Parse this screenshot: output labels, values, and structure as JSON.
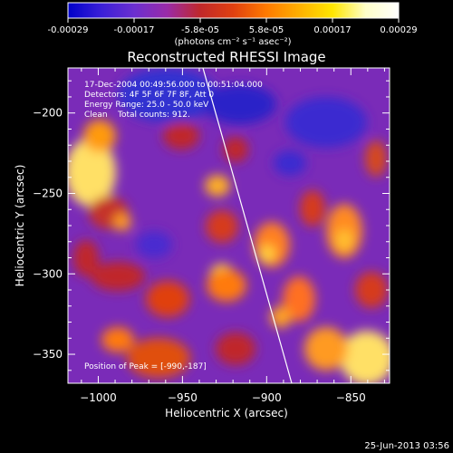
{
  "colorbar": {
    "tick_labels": [
      "-0.00029",
      "-0.00017",
      "-5.8e-05",
      "5.8e-05",
      "0.00017",
      "0.00029"
    ],
    "unit_label": "(photons cm⁻² s⁻¹ asec⁻²)",
    "colormap": [
      "#0000c8",
      "#3a1fd8",
      "#6b2fd0",
      "#9a2ba8",
      "#c0282a",
      "#e04010",
      "#ff7a00",
      "#ffb000",
      "#ffe600",
      "#ffffc8",
      "#ffffff"
    ]
  },
  "image": {
    "title": "Reconstructed RHESSI Image",
    "info_lines": [
      "17-Dec-2004 00:49:56.000 to 00:51:04.000",
      "Detectors: 4F 5F 6F 7F 8F, Att 0",
      "Energy Range: 25.0 - 50.0 keV",
      "Clean    Total counts: 912."
    ],
    "peak_label": "Position of Peak = [-990,-187]",
    "x_label": "Heliocentric X (arcsec)",
    "y_label": "Heliocentric Y (arcsec)",
    "x_ticks": [
      -1000,
      -950,
      -900,
      -850
    ],
    "y_ticks": [
      -200,
      -250,
      -300,
      -350
    ],
    "x_range": [
      -1018,
      -827
    ],
    "y_range": [
      -172,
      -368
    ]
  },
  "footer": {
    "timestamp": "25-Jun-2013 03:56"
  }
}
